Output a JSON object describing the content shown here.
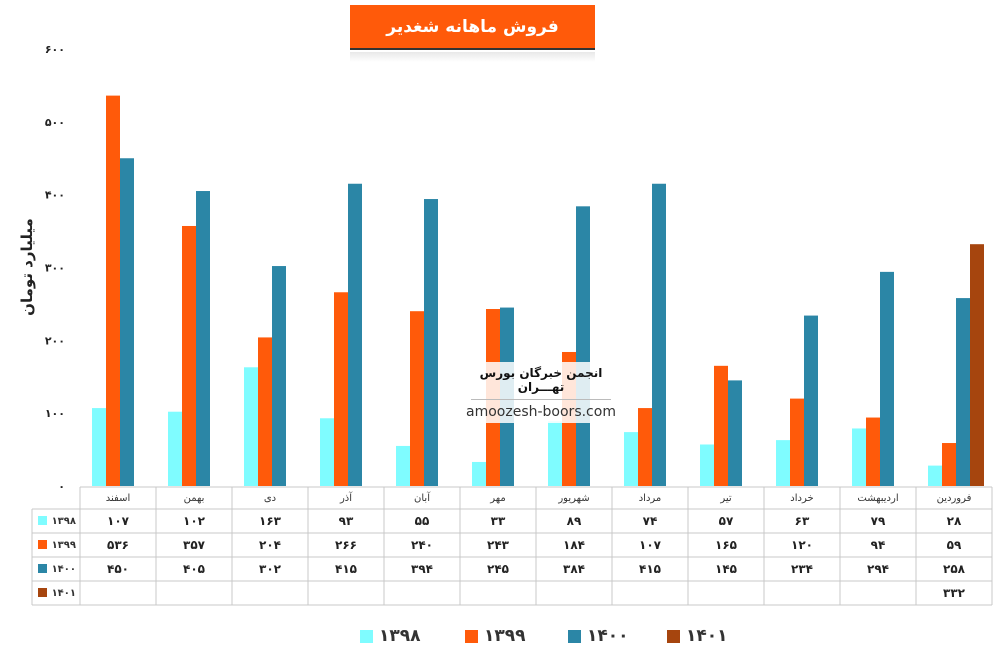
{
  "title": "فروش ماهانه شغدیر",
  "ylabel": "میلیارد تومان",
  "watermark": {
    "line1": "انجمن خبرگان بورس تهـــران",
    "line2": "amoozesh-boors.com"
  },
  "colors": {
    "1398": "#7ffcff",
    "1399": "#ff5a0a",
    "1400": "#2b86a6",
    "1401": "#a6450e"
  },
  "chart_data": {
    "type": "bar",
    "categories": [
      "فروردین",
      "اردیبهشت",
      "خرداد",
      "تیر",
      "مرداد",
      "شهریور",
      "مهر",
      "آبان",
      "آذر",
      "دی",
      "بهمن",
      "اسفند"
    ],
    "yticks": [
      "۰",
      "۱۰۰",
      "۲۰۰",
      "۳۰۰",
      "۴۰۰",
      "۵۰۰",
      "۶۰۰"
    ],
    "ylim": [
      0,
      600
    ],
    "grid": false,
    "legend_position": "bottom",
    "series": [
      {
        "name": "۱۳۹۸",
        "key": "1398",
        "values": [
          28,
          79,
          63,
          57,
          74,
          89,
          33,
          55,
          93,
          163,
          102,
          107
        ],
        "labels": [
          "۲۸",
          "۷۹",
          "۶۳",
          "۵۷",
          "۷۴",
          "۸۹",
          "۳۳",
          "۵۵",
          "۹۳",
          "۱۶۳",
          "۱۰۲",
          "۱۰۷"
        ]
      },
      {
        "name": "۱۳۹۹",
        "key": "1399",
        "values": [
          59,
          94,
          120,
          165,
          107,
          184,
          243,
          240,
          266,
          204,
          357,
          536
        ],
        "labels": [
          "۵۹",
          "۹۴",
          "۱۲۰",
          "۱۶۵",
          "۱۰۷",
          "۱۸۴",
          "۲۴۳",
          "۲۴۰",
          "۲۶۶",
          "۲۰۴",
          "۳۵۷",
          "۵۳۶"
        ]
      },
      {
        "name": "۱۴۰۰",
        "key": "1400",
        "values": [
          258,
          294,
          234,
          145,
          415,
          384,
          245,
          394,
          415,
          302,
          405,
          450
        ],
        "labels": [
          "۲۵۸",
          "۲۹۴",
          "۲۳۴",
          "۱۴۵",
          "۴۱۵",
          "۳۸۴",
          "۲۴۵",
          "۳۹۴",
          "۴۱۵",
          "۳۰۲",
          "۴۰۵",
          "۴۵۰"
        ]
      },
      {
        "name": "۱۴۰۱",
        "key": "1401",
        "values": [
          332,
          null,
          null,
          null,
          null,
          null,
          null,
          null,
          null,
          null,
          null,
          null
        ],
        "labels": [
          "۳۳۲",
          "",
          "",
          "",
          "",
          "",
          "",
          "",
          "",
          "",
          "",
          ""
        ]
      }
    ]
  }
}
